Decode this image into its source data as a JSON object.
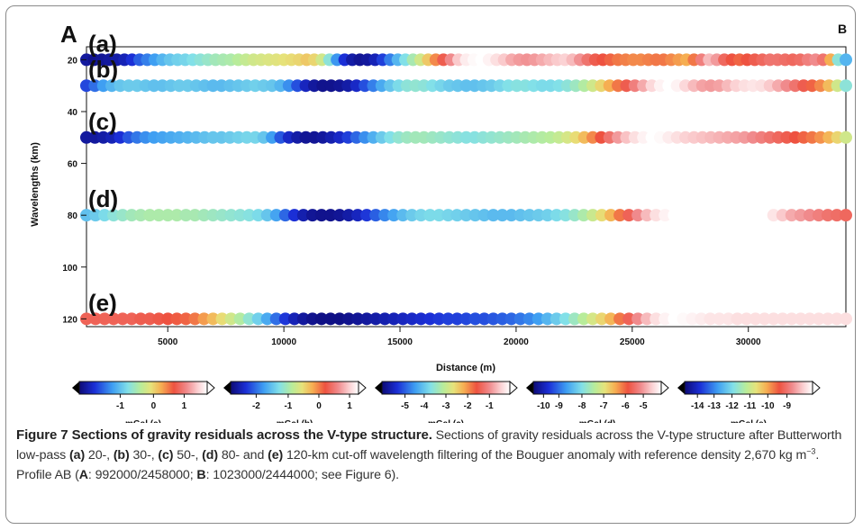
{
  "figure": {
    "panel_label_left": "A",
    "panel_label_right": "B"
  },
  "chart_data": {
    "type": "heatmap",
    "xlabel": "Distance (m)",
    "ylabel": "Wavelengths (km)",
    "xlim": [
      1500,
      34200
    ],
    "ylim": [
      15,
      123
    ],
    "x_ticks": [
      5000,
      10000,
      15000,
      20000,
      25000,
      30000
    ],
    "y_ticks": [
      20,
      40,
      60,
      80,
      100,
      120
    ],
    "grid": false,
    "rows": [
      {
        "label": "(a)",
        "wavelength_km": 20,
        "colorbar_label": "mGal (a)",
        "colorbar_ticks": [
          "-1",
          "0",
          "1"
        ],
        "tick_positions": [
          0.32,
          0.58,
          0.82
        ],
        "values": [
          0.05,
          0.03,
          0.04,
          0.05,
          0.06,
          0.08,
          0.12,
          0.18,
          0.22,
          0.26,
          0.3,
          0.33,
          0.35,
          0.36,
          0.38,
          0.4,
          0.42,
          0.44,
          0.45,
          0.46,
          0.48,
          0.5,
          0.52,
          0.53,
          0.54,
          0.55,
          0.56,
          0.57,
          0.58,
          0.6,
          0.58,
          0.52,
          0.4,
          0.25,
          0.12,
          0.06,
          0.04,
          0.05,
          0.08,
          0.14,
          0.22,
          0.3,
          0.38,
          0.45,
          0.52,
          0.6,
          0.68,
          0.76,
          0.84,
          0.92,
          0.97,
          0.99,
          1.0,
          0.98,
          0.95,
          0.92,
          0.88,
          0.86,
          0.85,
          0.86,
          0.88,
          0.9,
          0.92,
          0.93,
          0.9,
          0.85,
          0.8,
          0.76,
          0.74,
          0.72,
          0.7,
          0.69,
          0.68,
          0.68,
          0.69,
          0.7,
          0.7,
          0.68,
          0.66,
          0.64,
          0.7,
          0.82,
          0.9,
          0.86,
          0.78,
          0.74,
          0.72,
          0.74,
          0.76,
          0.78,
          0.8,
          0.8,
          0.79,
          0.78,
          0.79,
          0.82,
          0.84,
          0.8,
          0.64,
          0.4,
          0.3
        ]
      },
      {
        "label": "(b)",
        "wavelength_km": 30,
        "colorbar_label": "mGal (b)",
        "colorbar_ticks": [
          "-2",
          "-1",
          "0",
          "1"
        ],
        "tick_positions": [
          0.2,
          0.45,
          0.69,
          0.93
        ],
        "values": [
          0.15,
          0.2,
          0.26,
          0.3,
          0.33,
          0.34,
          0.34,
          0.33,
          0.32,
          0.32,
          0.33,
          0.34,
          0.34,
          0.33,
          0.32,
          0.31,
          0.31,
          0.32,
          0.33,
          0.34,
          0.35,
          0.34,
          0.33,
          0.3,
          0.24,
          0.16,
          0.09,
          0.05,
          0.03,
          0.03,
          0.04,
          0.06,
          0.1,
          0.16,
          0.22,
          0.28,
          0.33,
          0.37,
          0.4,
          0.41,
          0.4,
          0.38,
          0.36,
          0.34,
          0.33,
          0.32,
          0.32,
          0.33,
          0.34,
          0.36,
          0.38,
          0.39,
          0.39,
          0.38,
          0.37,
          0.37,
          0.38,
          0.4,
          0.43,
          0.47,
          0.52,
          0.58,
          0.64,
          0.7,
          0.76,
          0.82,
          0.88,
          0.94,
          0.98,
          1.0,
          0.98,
          0.94,
          0.9,
          0.87,
          0.86,
          0.87,
          0.9,
          0.93,
          0.95,
          0.96,
          0.95,
          0.92,
          0.88,
          0.84,
          0.8,
          0.76,
          0.72,
          0.68,
          0.62,
          0.52,
          0.4
        ]
      },
      {
        "label": "(c)",
        "wavelength_km": 50,
        "colorbar_label": "mGal (c)",
        "colorbar_ticks": [
          "-5",
          "-4",
          "-3",
          "-2",
          "-1"
        ],
        "tick_positions": [
          0.18,
          0.33,
          0.5,
          0.67,
          0.84
        ],
        "values": [
          0.05,
          0.05,
          0.06,
          0.08,
          0.12,
          0.17,
          0.21,
          0.24,
          0.26,
          0.27,
          0.28,
          0.29,
          0.3,
          0.31,
          0.32,
          0.33,
          0.33,
          0.34,
          0.35,
          0.36,
          0.36,
          0.33,
          0.26,
          0.17,
          0.1,
          0.06,
          0.04,
          0.04,
          0.05,
          0.07,
          0.1,
          0.14,
          0.19,
          0.24,
          0.29,
          0.34,
          0.38,
          0.41,
          0.43,
          0.44,
          0.44,
          0.43,
          0.42,
          0.41,
          0.4,
          0.39,
          0.39,
          0.4,
          0.41,
          0.42,
          0.43,
          0.44,
          0.45,
          0.46,
          0.47,
          0.48,
          0.5,
          0.53,
          0.57,
          0.62,
          0.68,
          0.74,
          0.8,
          0.86,
          0.91,
          0.95,
          0.98,
          1.0,
          0.99,
          0.97,
          0.95,
          0.93,
          0.92,
          0.91,
          0.9,
          0.89,
          0.88,
          0.87,
          0.86,
          0.84,
          0.82,
          0.8,
          0.78,
          0.76,
          0.74,
          0.72,
          0.7,
          0.67,
          0.63,
          0.58,
          0.52
        ]
      },
      {
        "label": "(d)",
        "wavelength_km": 80,
        "colorbar_label": "mGal (d)",
        "colorbar_ticks": [
          "-10",
          "-9",
          "-8",
          "-7",
          "-6",
          "-5"
        ],
        "tick_positions": [
          0.08,
          0.2,
          0.38,
          0.55,
          0.72,
          0.86
        ],
        "values": [
          0.32,
          0.34,
          0.37,
          0.4,
          0.42,
          0.44,
          0.45,
          0.46,
          0.46,
          0.46,
          0.46,
          0.45,
          0.45,
          0.44,
          0.43,
          0.42,
          0.41,
          0.4,
          0.39,
          0.37,
          0.33,
          0.27,
          0.19,
          0.12,
          0.07,
          0.04,
          0.03,
          0.03,
          0.04,
          0.06,
          0.09,
          0.13,
          0.18,
          0.23,
          0.27,
          0.31,
          0.34,
          0.36,
          0.37,
          0.37,
          0.36,
          0.35,
          0.34,
          0.33,
          0.32,
          0.31,
          0.31,
          0.31,
          0.32,
          0.33,
          0.34,
          0.35,
          0.37,
          0.39,
          0.42,
          0.46,
          0.51,
          0.57,
          0.63,
          0.7,
          0.77,
          0.84,
          0.9,
          0.95,
          0.98,
          1.0,
          1.0,
          1.0,
          1.0,
          1.0,
          1.0,
          1.0,
          1.0,
          1.0,
          1.0,
          1.0,
          0.96,
          0.92,
          0.88,
          0.86,
          0.84,
          0.82,
          0.8,
          0.79,
          0.78
        ]
      },
      {
        "label": "(e)",
        "wavelength_km": 120,
        "colorbar_label": "mGal (e)",
        "colorbar_ticks": [
          "-14",
          "-13",
          "-12",
          "-11",
          "-10",
          "-9"
        ],
        "tick_positions": [
          0.1,
          0.23,
          0.37,
          0.51,
          0.65,
          0.8
        ],
        "values": [
          0.77,
          0.77,
          0.77,
          0.77,
          0.77,
          0.77,
          0.76,
          0.76,
          0.75,
          0.74,
          0.73,
          0.72,
          0.7,
          0.66,
          0.62,
          0.57,
          0.52,
          0.47,
          0.41,
          0.35,
          0.28,
          0.2,
          0.13,
          0.08,
          0.05,
          0.03,
          0.02,
          0.02,
          0.02,
          0.03,
          0.04,
          0.05,
          0.06,
          0.07,
          0.08,
          0.09,
          0.1,
          0.11,
          0.12,
          0.13,
          0.14,
          0.14,
          0.15,
          0.16,
          0.16,
          0.17,
          0.18,
          0.19,
          0.21,
          0.23,
          0.26,
          0.3,
          0.34,
          0.38,
          0.43,
          0.48,
          0.53,
          0.58,
          0.63,
          0.7,
          0.77,
          0.84,
          0.9,
          0.95,
          0.98,
          1.0,
          0.99,
          0.98,
          0.97,
          0.96,
          0.96,
          0.96,
          0.95,
          0.95,
          0.95,
          0.95,
          0.95,
          0.95,
          0.95,
          0.95,
          0.95,
          0.95,
          0.95,
          0.95,
          0.95
        ]
      }
    ]
  },
  "caption": {
    "title": "Figure 7 Sections of gravity residuals across the V-type structure.",
    "s1": " Sections of gravity residuals across the V-type structure after Butterworth low-pass ",
    "a": "(a)",
    "s2": " 20-, ",
    "b": "(b)",
    "s3": " 30-, ",
    "c": "(c)",
    "s4": " 50-, ",
    "d": "(d)",
    "s5": " 80- and ",
    "e": "(e)",
    "s6": " 120-km cut-off wavelength filtering of the Bouguer anomaly with reference density 2,670 kg m",
    "sup": "−3",
    "s7": ". Profile AB (",
    "A": "A",
    "s8": ": 992000/2458000; ",
    "B": "B",
    "s9": ": 1023000/2444000; see Figure 6)."
  }
}
